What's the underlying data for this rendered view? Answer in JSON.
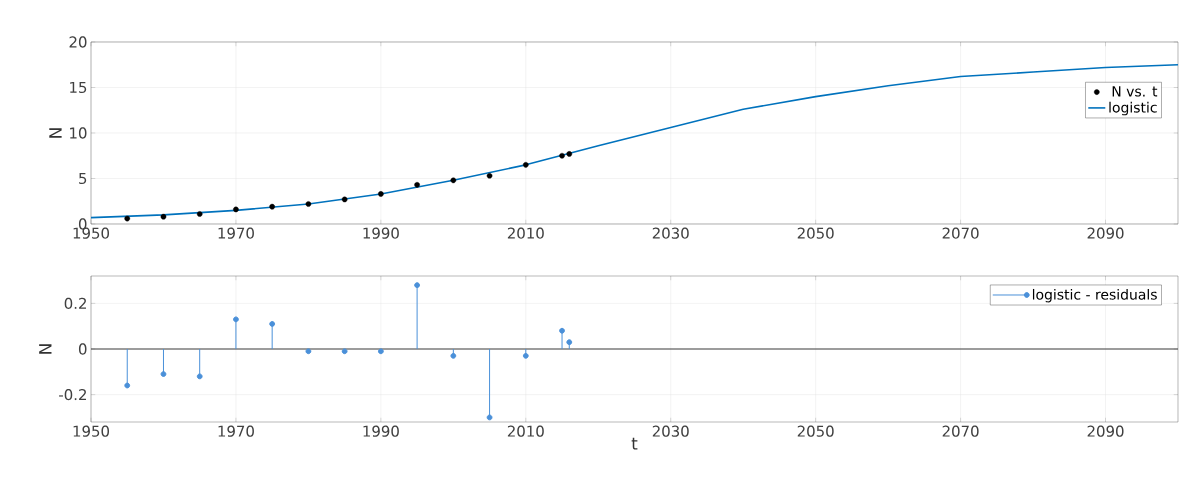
{
  "chart_data": [
    {
      "type": "scatter",
      "ylabel": "N",
      "xlim": [
        1950,
        2100
      ],
      "ylim": [
        0,
        20
      ],
      "xticks": [
        1950,
        1970,
        1990,
        2010,
        2030,
        2050,
        2070,
        2090
      ],
      "yticks": [
        0,
        5,
        10,
        15,
        20
      ],
      "grid": true,
      "legend": "top right",
      "marker": "circle",
      "x": [
        1955,
        1960,
        1965,
        1970,
        1975,
        1980,
        1985,
        1990,
        1995,
        2000,
        2005,
        2010,
        2015,
        2016
      ],
      "series": [
        {
          "name": "N vs. t",
          "color": "#000000",
          "values": [
            0.6,
            0.8,
            1.1,
            1.6,
            1.9,
            2.2,
            2.7,
            3.3,
            4.3,
            4.8,
            5.3,
            6.5,
            7.5,
            7.7
          ]
        },
        {
          "name": "logistic",
          "type": "line",
          "marker": "none",
          "color": "#0072bd",
          "x": [
            1950,
            1960,
            1970,
            1980,
            1990,
            2000,
            2010,
            2020,
            2030,
            2040,
            2050,
            2060,
            2070,
            2080,
            2090,
            2100
          ],
          "values": [
            0.7,
            1.0,
            1.5,
            2.2,
            3.3,
            4.8,
            6.5,
            8.6,
            10.6,
            12.6,
            14.0,
            15.2,
            16.2,
            16.7,
            17.2,
            17.5
          ]
        }
      ]
    },
    {
      "type": "lollipop",
      "xlabel": "t",
      "ylabel": "N",
      "xlim": [
        1950,
        2100
      ],
      "ylim": [
        -0.32,
        0.32
      ],
      "xticks": [
        1950,
        1970,
        1990,
        2010,
        2030,
        2050,
        2070,
        2090
      ],
      "yticks": [
        -0.2,
        0,
        0.2
      ],
      "grid": true,
      "legend": "top right",
      "marker": "circle",
      "x": [
        1955,
        1960,
        1965,
        1970,
        1975,
        1980,
        1985,
        1990,
        1995,
        2000,
        2005,
        2010,
        2015,
        2016
      ],
      "ref_lines": [
        {
          "axis": "y",
          "value": 0,
          "color": "#404040"
        }
      ],
      "series": [
        {
          "name": "logistic - residuals",
          "color": "#4a90d9",
          "values": [
            -0.16,
            -0.11,
            -0.12,
            0.13,
            0.11,
            -0.01,
            -0.01,
            -0.01,
            0.28,
            -0.03,
            -0.3,
            -0.03,
            0.08,
            0.03
          ]
        }
      ]
    }
  ]
}
